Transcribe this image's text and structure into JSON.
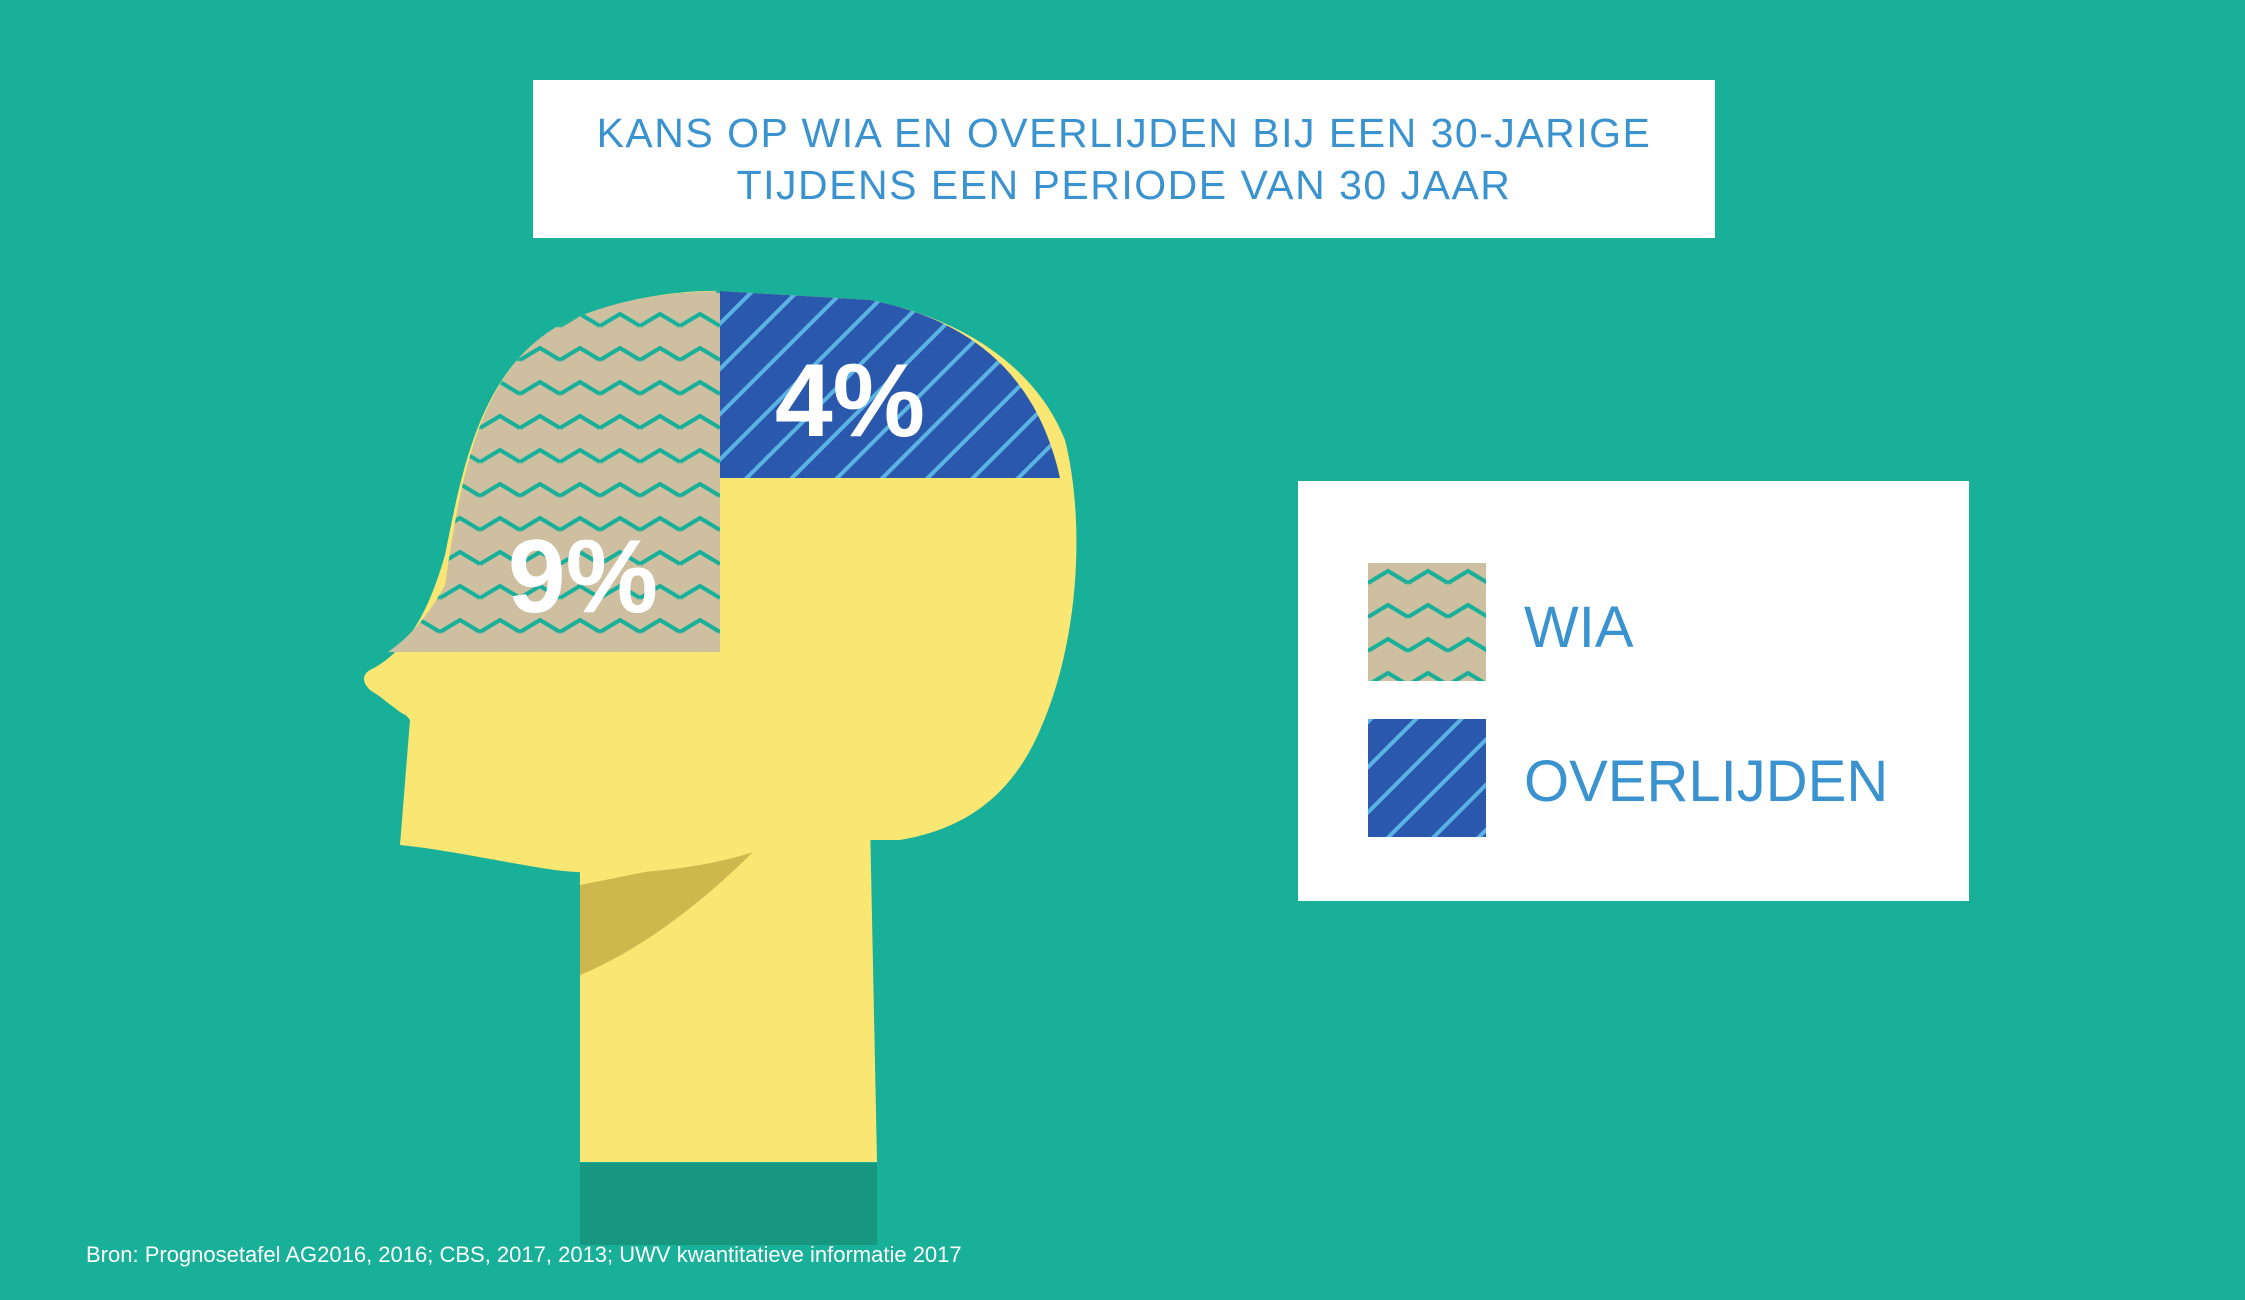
{
  "title": {
    "line1": "KANS OP WIA EN OVERLIJDEN BIJ EEN 30-JARIGE",
    "line2": "TIJDENS EEN PERIODE VAN 30 JAAR"
  },
  "chart_data": {
    "type": "area",
    "title": "KANS OP WIA EN OVERLIJDEN BIJ EEN 30-JARIGE TIJDENS EEN PERIODE VAN 30 JAAR",
    "categories": [
      "WIA",
      "OVERLIJDEN"
    ],
    "values": [
      9,
      4
    ],
    "value_labels": [
      "9%",
      "4%"
    ],
    "unit": "%",
    "legend": [
      "WIA",
      "OVERLIJDEN"
    ],
    "legend_placement": "right"
  },
  "legend": {
    "items": [
      {
        "label": "WIA"
      },
      {
        "label": "OVERLIJDEN"
      }
    ]
  },
  "source": "Bron: Prognosetafel AG2016, 2016; CBS, 2017, 2013; UWV kwantitatieve informatie 2017",
  "colors": {
    "background": "#19b09a",
    "head": "#fae773",
    "neck_shadow": "#c9b24a",
    "wia_fill": "#cdbf9f",
    "wia_pattern": "#19b09a",
    "overlijden_fill": "#2a58ad",
    "overlijden_pattern": "#5bb3e4",
    "text_accent": "#3a93cf",
    "reflection": "#17977f"
  }
}
